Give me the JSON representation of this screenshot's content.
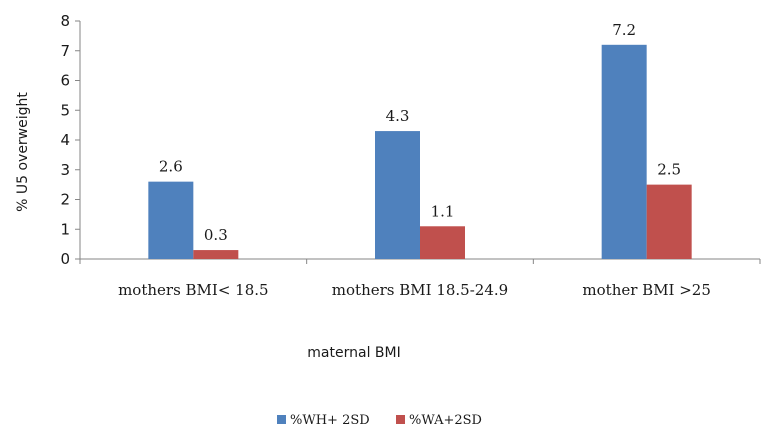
{
  "chart_data": {
    "type": "bar",
    "categories": [
      "mothers BMI< 18.5",
      "mothers BMI 18.5-24.9",
      "mother BMI >25"
    ],
    "series": [
      {
        "name": "%WH+ 2SD",
        "values": [
          2.6,
          4.3,
          7.2
        ],
        "color": "#4f81bd"
      },
      {
        "name": "%WA+2SD",
        "values": [
          0.3,
          1.1,
          2.5
        ],
        "color": "#c0504d"
      }
    ],
    "data_labels": [
      [
        "2.6",
        "4.3",
        "7.2"
      ],
      [
        "0.3",
        "1.1",
        "2.5"
      ]
    ],
    "title": "",
    "xlabel": "maternal BMI",
    "ylabel": "% U5 overweight",
    "ylim": [
      0,
      8
    ],
    "yticks": [
      0,
      1,
      2,
      3,
      4,
      5,
      6,
      7,
      8
    ],
    "grid": false,
    "legend_position": "bottom"
  }
}
